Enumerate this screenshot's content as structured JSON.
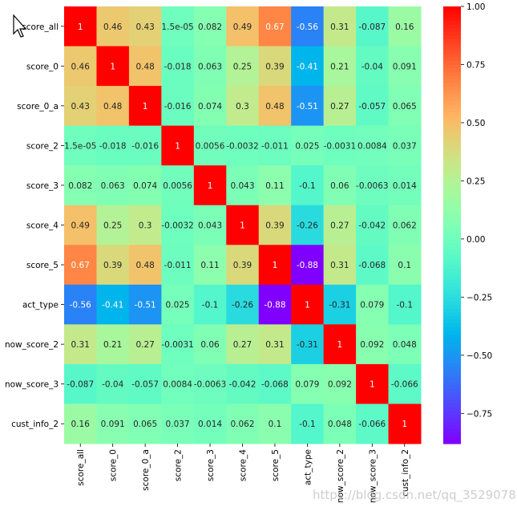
{
  "chart_data": {
    "type": "heatmap",
    "labels": [
      "score_all",
      "score_0",
      "score_0_a",
      "score_2",
      "score_3",
      "score_4",
      "score_5",
      "act_type",
      "now_score_2",
      "now_score_3",
      "cust_info_2"
    ],
    "annotations": [
      [
        "1",
        "0.46",
        "0.43",
        "1.5e-05",
        "0.082",
        "0.49",
        "0.67",
        "-0.56",
        "0.31",
        "-0.087",
        "0.16"
      ],
      [
        "0.46",
        "1",
        "0.48",
        "-0.018",
        "0.063",
        "0.25",
        "0.39",
        "-0.41",
        "0.21",
        "-0.04",
        "0.091"
      ],
      [
        "0.43",
        "0.48",
        "1",
        "-0.016",
        "0.074",
        "0.3",
        "0.48",
        "-0.51",
        "0.27",
        "-0.057",
        "0.065"
      ],
      [
        "1.5e-05",
        "-0.018",
        "-0.016",
        "1",
        "0.0056",
        "-0.0032",
        "-0.011",
        "0.025",
        "-0.0031",
        "0.0084",
        "0.037"
      ],
      [
        "0.082",
        "0.063",
        "0.074",
        "0.0056",
        "1",
        "0.043",
        "0.11",
        "-0.1",
        "0.06",
        "-0.0063",
        "0.014"
      ],
      [
        "0.49",
        "0.25",
        "0.3",
        "-0.0032",
        "0.043",
        "1",
        "0.39",
        "-0.26",
        "0.27",
        "-0.042",
        "0.062"
      ],
      [
        "0.67",
        "0.39",
        "0.48",
        "-0.011",
        "0.11",
        "0.39",
        "1",
        "-0.88",
        "0.31",
        "-0.068",
        "0.1"
      ],
      [
        "-0.56",
        "-0.41",
        "-0.51",
        "0.025",
        "-0.1",
        "-0.26",
        "-0.88",
        "1",
        "-0.31",
        "0.079",
        "-0.1"
      ],
      [
        "0.31",
        "0.21",
        "0.27",
        "-0.0031",
        "0.06",
        "0.27",
        "0.31",
        "-0.31",
        "1",
        "0.092",
        "0.048"
      ],
      [
        "-0.087",
        "-0.04",
        "-0.057",
        "0.0084",
        "-0.0063",
        "-0.042",
        "-0.068",
        "0.079",
        "0.092",
        "1",
        "-0.066"
      ],
      [
        "0.16",
        "0.091",
        "0.065",
        "0.037",
        "0.014",
        "0.062",
        "0.1",
        "-0.1",
        "0.048",
        "-0.066",
        "1"
      ]
    ],
    "colormap": "rainbow",
    "vmin": -0.88,
    "vmax": 1.0,
    "colorbar_ticks": [
      "1.00",
      "0.75",
      "0.50",
      "0.25",
      "0.00",
      "−0.25",
      "−0.50",
      "−0.75"
    ],
    "colorbar_tick_values": [
      1.0,
      0.75,
      0.5,
      0.25,
      0.0,
      -0.25,
      -0.5,
      -0.75
    ],
    "grid": false
  },
  "watermark": "https://blog.csdn.net/qq_35290785",
  "cursor_icon": "arrow-pointer"
}
